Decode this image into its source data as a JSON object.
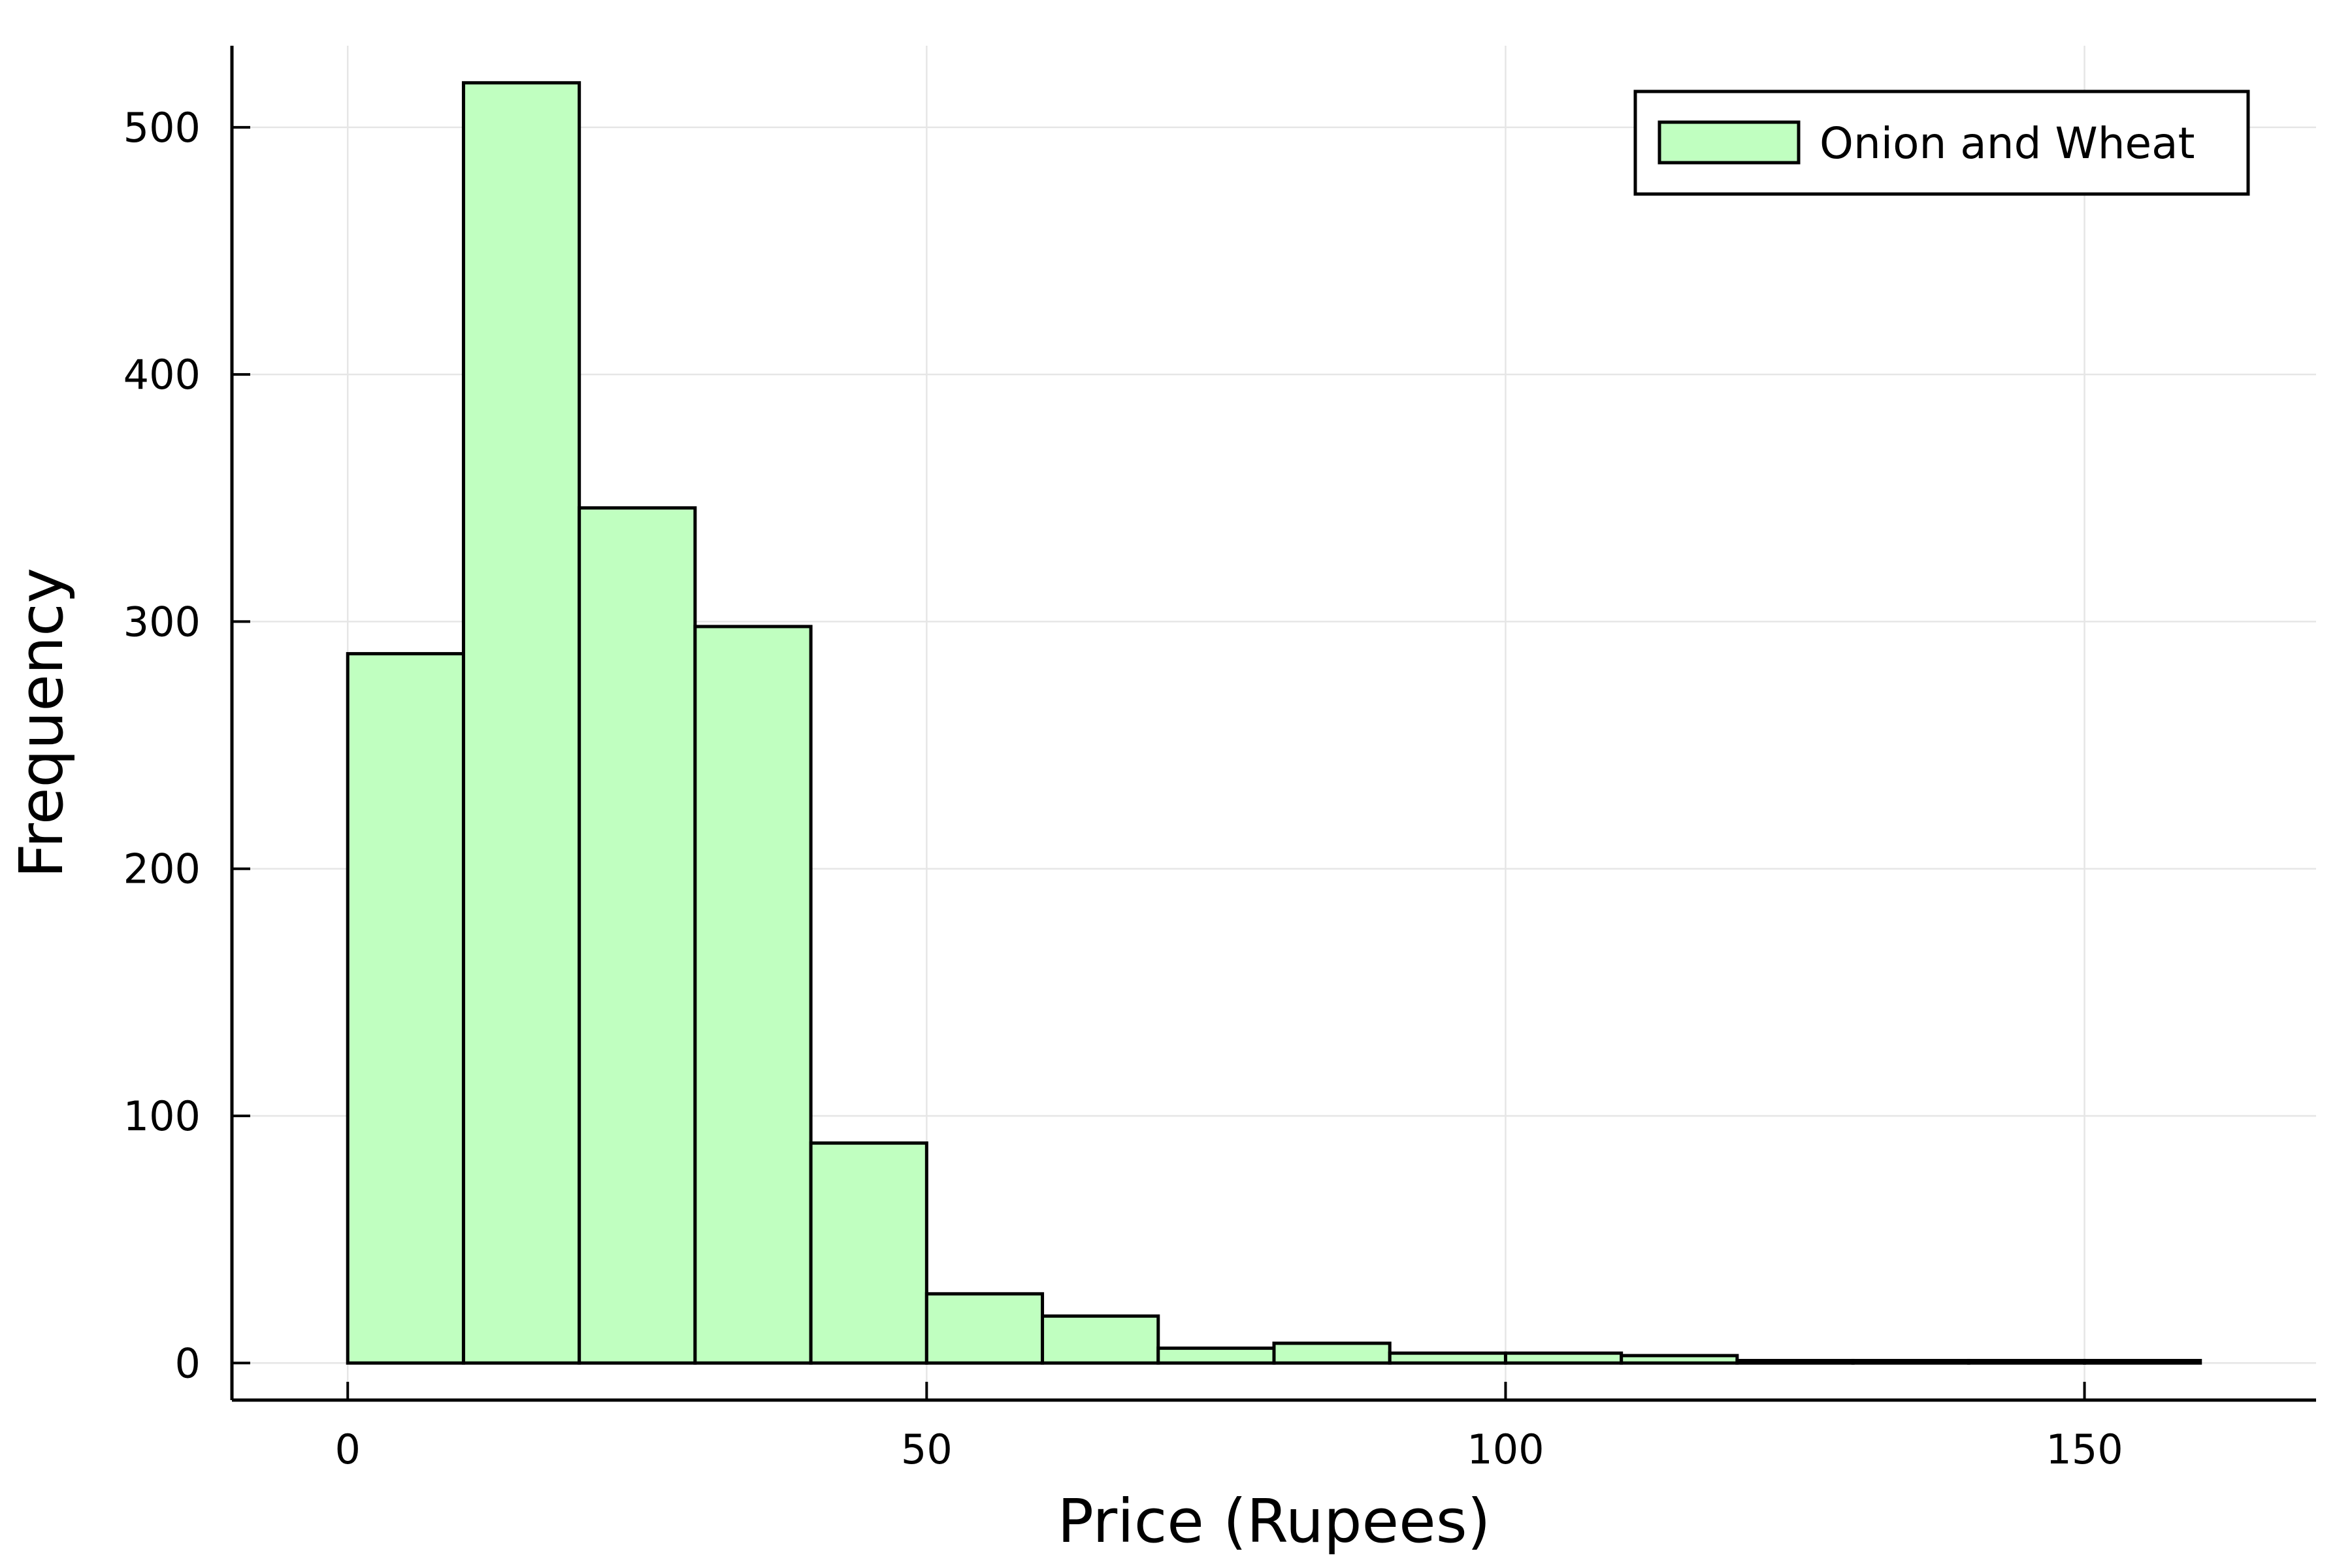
{
  "chart_data": {
    "type": "bar",
    "subtype": "histogram",
    "title": "",
    "xlabel": "Price (Rupees)",
    "ylabel": "Frequency",
    "xlim": [
      -10,
      170
    ],
    "ylim": [
      -15,
      533
    ],
    "x_ticks": [
      0,
      50,
      100,
      150
    ],
    "y_ticks": [
      0,
      100,
      200,
      300,
      400,
      500
    ],
    "grid": true,
    "legend_position": "top-right",
    "bin_width": 10,
    "series": [
      {
        "name": "Onion and Wheat",
        "color": "#c0ffc0",
        "bins": [
          {
            "x0": 0,
            "x1": 10,
            "value": 287
          },
          {
            "x0": 10,
            "x1": 20,
            "value": 518
          },
          {
            "x0": 20,
            "x1": 30,
            "value": 346
          },
          {
            "x0": 30,
            "x1": 40,
            "value": 298
          },
          {
            "x0": 40,
            "x1": 50,
            "value": 89
          },
          {
            "x0": 50,
            "x1": 60,
            "value": 28
          },
          {
            "x0": 60,
            "x1": 70,
            "value": 19
          },
          {
            "x0": 70,
            "x1": 80,
            "value": 6
          },
          {
            "x0": 80,
            "x1": 90,
            "value": 8
          },
          {
            "x0": 90,
            "x1": 100,
            "value": 4
          },
          {
            "x0": 100,
            "x1": 110,
            "value": 4
          },
          {
            "x0": 110,
            "x1": 120,
            "value": 3
          },
          {
            "x0": 120,
            "x1": 130,
            "value": 1
          },
          {
            "x0": 130,
            "x1": 140,
            "value": 1
          },
          {
            "x0": 140,
            "x1": 150,
            "value": 1
          },
          {
            "x0": 150,
            "x1": 160,
            "value": 1
          }
        ]
      }
    ]
  }
}
